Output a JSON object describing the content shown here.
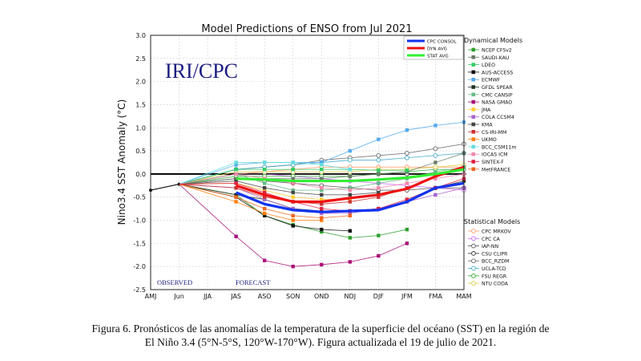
{
  "chart_data": {
    "type": "line",
    "title": "Model Predictions of ENSO from Jul 2021",
    "ylabel": "Nino3.4 SST Anomaly (°C)",
    "xlabel": "",
    "ylim": [
      -2.5,
      3.0
    ],
    "yticks": [
      "-2.5",
      "-2.0",
      "-1.5",
      "-1.0",
      "-0.5",
      "0.0",
      "0.5",
      "1.0",
      "1.5",
      "2.0",
      "2.5",
      "3.0"
    ],
    "categories": [
      "AMJ",
      "Jun",
      "JJA",
      "JAS",
      "ASO",
      "SON",
      "OND",
      "NDJ",
      "DJF",
      "JFM",
      "FMA",
      "MAM"
    ],
    "grid": true,
    "watermark": "IRI/CPC",
    "observed_label": "OBSERVED",
    "forecast_label": "FORECAST",
    "observed": {
      "x": [
        "AMJ",
        "Jun"
      ],
      "values": [
        -0.35,
        -0.22
      ]
    },
    "summary_legend": [
      "CPC CONSOL",
      "DYN AVG",
      "STAT AVG"
    ],
    "dynamical_legend_title": "Dynamical Models",
    "statistical_legend_title": "Statistical Models",
    "dynamical_series": [
      {
        "name": "NCEP CFSv2",
        "color": "#2ca02c",
        "values": [
          -0.45,
          -0.9,
          -1.1,
          -1.25,
          -1.38,
          -1.33,
          -1.2
        ]
      },
      {
        "name": "SAUDI-KAU",
        "color": "#6b7b6b",
        "values": [
          -0.1,
          -0.1,
          -0.1,
          -0.1,
          -0.05,
          0.0,
          0.05,
          0.25,
          0.45
        ]
      },
      {
        "name": "LDEO",
        "color": "#33cc66",
        "values": [
          0.1,
          0.1,
          0.1,
          0.1,
          0.1,
          0.08,
          0.08
        ]
      },
      {
        "name": "AUS-ACCESS",
        "color": "#111111",
        "values": [
          -0.5,
          -0.9,
          -1.12,
          -1.2,
          -1.23
        ]
      },
      {
        "name": "ECMWF",
        "color": "#55aaee",
        "values": [
          0.2,
          0.25,
          0.25,
          0.25,
          0.5,
          0.75,
          0.95,
          1.05,
          1.12
        ]
      },
      {
        "name": "GFDL SPEAR",
        "color": "#223322",
        "values": [
          -0.45,
          -0.55,
          -0.75,
          -0.8,
          -0.8,
          -0.75,
          -0.6,
          -0.3,
          -0.15
        ]
      },
      {
        "name": "CMC CANSIP",
        "color": "#66bb88",
        "values": [
          0.0,
          -0.2,
          -0.35,
          -0.35,
          -0.3,
          -0.2,
          -0.1,
          0.05,
          0.15
        ]
      },
      {
        "name": "NASA GMAO",
        "color": "#aa1177",
        "values": [
          -1.35,
          -1.87,
          -2.0,
          -1.96,
          -1.9,
          -1.77,
          -1.5
        ]
      },
      {
        "name": "JMA",
        "color": "#ffcc33",
        "values": [
          -0.2,
          -0.35,
          -0.5,
          -0.55,
          -0.55
        ]
      },
      {
        "name": "COLA CCSM4",
        "color": "#aa66cc",
        "values": [
          -0.3,
          -0.55,
          -0.75,
          -0.85,
          -0.85,
          -0.75,
          -0.6,
          -0.45,
          -0.3
        ]
      },
      {
        "name": "KMA",
        "color": "#444444",
        "values": [
          -0.15,
          -0.3,
          -0.4,
          -0.45,
          -0.45,
          -0.4
        ]
      },
      {
        "name": "CS-IRI-MM",
        "color": "#cc3333",
        "values": [
          -0.3,
          -0.5,
          -0.6,
          -0.65,
          -0.6,
          -0.5,
          -0.3
        ]
      },
      {
        "name": "UKMO",
        "color": "#ff7f0e",
        "values": [
          -0.6,
          -0.85,
          -1.0,
          -1.0
        ]
      },
      {
        "name": "BCC_CSM11m",
        "color": "#66dddd",
        "values": [
          0.25,
          0.25,
          0.25,
          0.2,
          0.1
        ]
      },
      {
        "name": "IOCAS ICM",
        "color": "#ee88aa",
        "values": [
          0.0,
          -0.1,
          -0.2,
          -0.3,
          -0.35,
          -0.3,
          -0.2,
          -0.1,
          0.0
        ]
      },
      {
        "name": "SINTEX-F",
        "color": "#dd2244",
        "values": [
          -0.2,
          -0.4,
          -0.6,
          -0.75,
          -0.8,
          -0.75,
          -0.55,
          -0.3,
          -0.1
        ]
      },
      {
        "name": "MetFRANCE",
        "color": "#ee6622",
        "values": [
          -0.5,
          -0.75,
          -0.9,
          -0.95,
          -0.9
        ]
      }
    ],
    "statistical_series": [
      {
        "name": "CPC MRKOV",
        "color": "#ff9966",
        "values": [
          0.0,
          0.05,
          0.1,
          0.15,
          0.15,
          0.15,
          0.15,
          0.15,
          0.15
        ]
      },
      {
        "name": "CPC CA",
        "color": "#cc66ff",
        "values": [
          0.0,
          0.0,
          -0.05,
          -0.1,
          -0.15,
          -0.2,
          -0.25,
          -0.3,
          -0.35
        ]
      },
      {
        "name": "IAP-NN",
        "color": "#555555",
        "values": [
          -0.1,
          -0.15,
          -0.2,
          -0.25,
          -0.3,
          -0.35,
          -0.35,
          -0.3,
          -0.3
        ]
      },
      {
        "name": "CSU CLIPR",
        "color": "#333333",
        "values": [
          0.0,
          0.0,
          0.0,
          0.0,
          0.0,
          0.0,
          0.0,
          0.0,
          0.0
        ]
      },
      {
        "name": "BCC_RZDM",
        "color": "#666666",
        "values": [
          0.1,
          0.15,
          0.2,
          0.3,
          0.35,
          0.4,
          0.45,
          0.55,
          0.65
        ]
      },
      {
        "name": "UCLA-TCD",
        "color": "#44aacc",
        "values": [
          0.1,
          0.15,
          0.2,
          0.25,
          0.3,
          0.3,
          0.35,
          0.4,
          0.45
        ]
      },
      {
        "name": "FSU REGR",
        "color": "#33aa33",
        "values": [
          -0.05,
          -0.05,
          -0.05,
          -0.05,
          -0.05,
          0.0,
          0.05,
          0.1,
          0.1
        ]
      },
      {
        "name": "NTU CODA",
        "color": "#ddcc44",
        "values": [
          0.05,
          0.05,
          0.05,
          0.05,
          0.05,
          0.1,
          0.1,
          0.15,
          0.2
        ]
      }
    ],
    "summary_series": [
      {
        "name": "CPC CONSOL",
        "color": "#1133ee",
        "values": [
          -0.4,
          -0.65,
          -0.78,
          -0.82,
          -0.8,
          -0.78,
          -0.6,
          -0.3,
          -0.2
        ]
      },
      {
        "name": "DYN AVG",
        "color": "#ee1111",
        "values": [
          -0.25,
          -0.45,
          -0.6,
          -0.6,
          -0.52,
          -0.45,
          -0.32,
          -0.05,
          0.15
        ]
      },
      {
        "name": "STAT AVG",
        "color": "#33ee33",
        "values": [
          -0.1,
          -0.12,
          -0.15,
          -0.15,
          -0.15,
          -0.12,
          -0.08,
          0.0,
          0.1
        ]
      }
    ]
  },
  "caption": {
    "line1": "Figura 6. Pronósticos de las anomalías de la temperatura de la superficie del océano (SST) en la región de",
    "line2": "El Niño 3.4 (5°N-5°S, 120°W-170°W). Figura actualizada el 19 de julio de 2021."
  }
}
